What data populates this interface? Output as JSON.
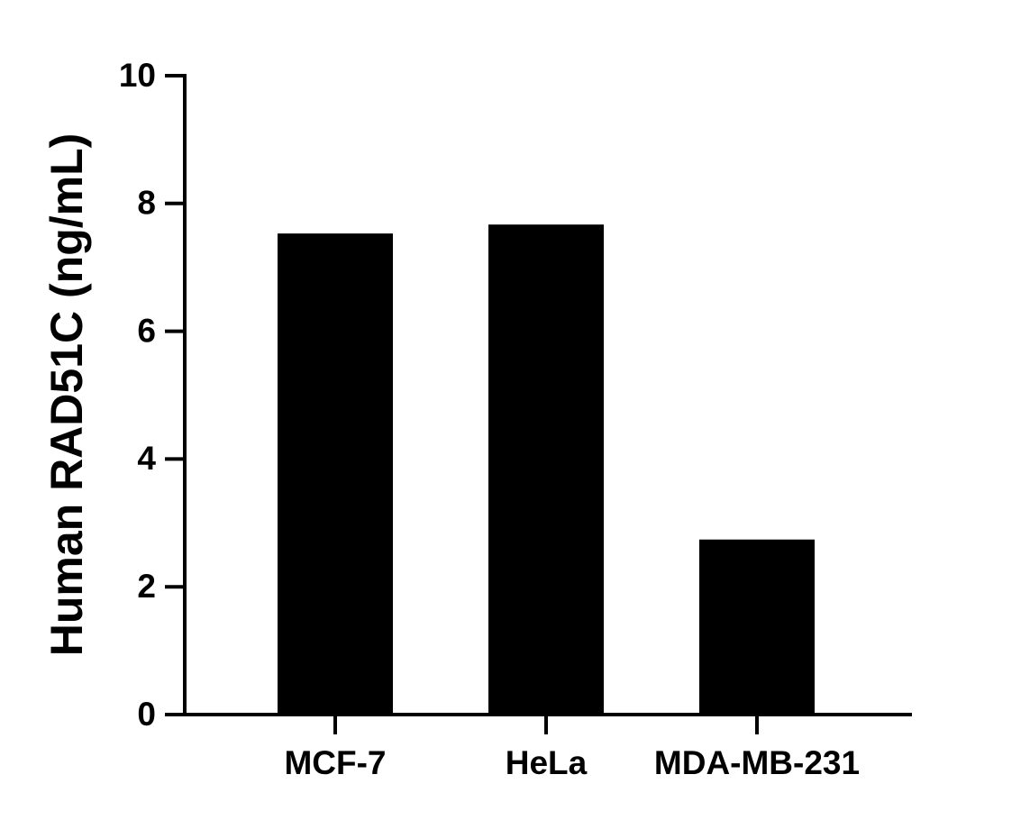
{
  "chart_data": {
    "type": "bar",
    "y_label": "Human RAD51C (ng/mL)",
    "categories": [
      "MCF-7",
      "HeLa",
      "MDA-MB-231"
    ],
    "values": [
      7.53,
      7.67,
      2.74
    ],
    "color": "#000000",
    "ylim": [
      0,
      10
    ],
    "yticks": [
      0,
      2,
      4,
      6,
      8,
      10
    ],
    "grid": false
  }
}
